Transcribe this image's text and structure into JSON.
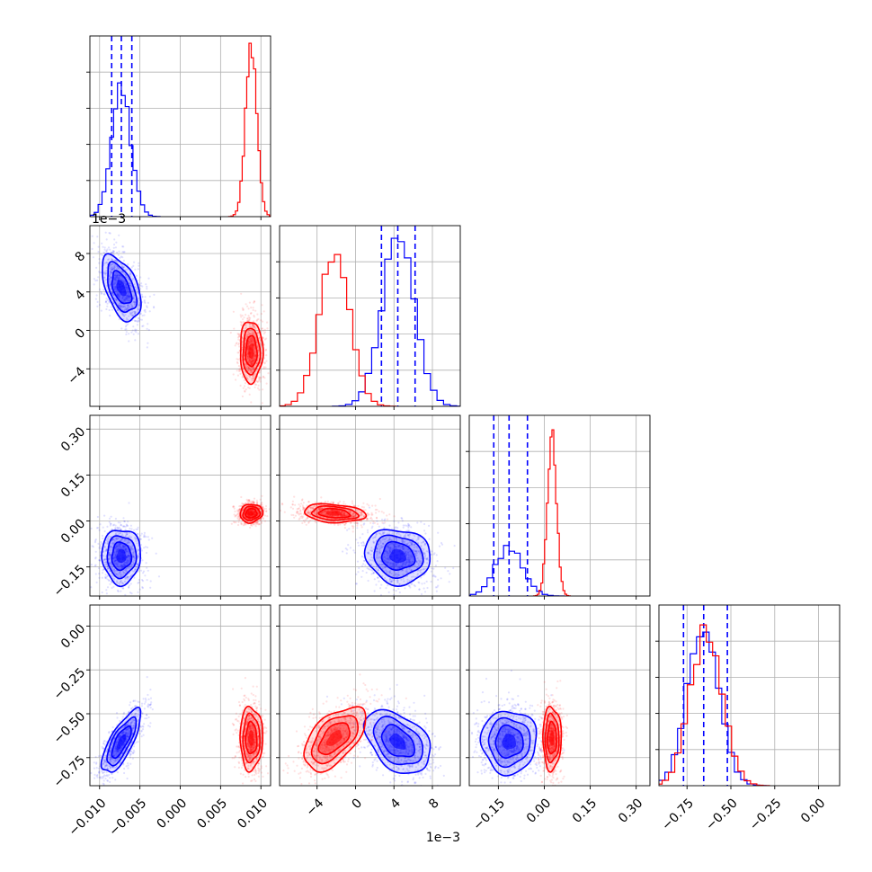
{
  "chart_data": {
    "type": "corner",
    "grid": true,
    "colors": {
      "blue": "#0000ff",
      "red": "#ff0000"
    },
    "parameters": [
      {
        "range": [
          -0.0112,
          0.0112
        ],
        "ticks": [
          -0.01,
          -0.005,
          0.0,
          0.005,
          0.01
        ],
        "tick_labels": [
          "−0.010",
          "−0.005",
          "0.000",
          "0.005",
          "0.010"
        ],
        "offset": ""
      },
      {
        "range": [
          -0.0079,
          0.0109
        ],
        "ticks": [
          -0.004,
          0.0,
          0.004,
          0.008
        ],
        "tick_labels": [
          "−4",
          "0",
          "4",
          "8"
        ],
        "offset": "1e−3"
      },
      {
        "range": [
          -0.245,
          0.345
        ],
        "ticks": [
          -0.15,
          0.0,
          0.15,
          0.3
        ],
        "tick_labels": [
          "−0.15",
          "0.00",
          "0.15",
          "0.30"
        ],
        "offset": ""
      },
      {
        "range": [
          -0.91,
          0.12
        ],
        "ticks": [
          -0.75,
          -0.5,
          -0.25,
          0.0
        ],
        "tick_labels": [
          "−0.75",
          "−0.50",
          "−0.25",
          "0.00"
        ],
        "offset": ""
      }
    ],
    "datasets": [
      {
        "color": "#0000ff",
        "means": [
          -0.0073,
          0.0044,
          -0.115,
          -0.66
        ],
        "sds": [
          0.0012,
          0.0017,
          0.045,
          0.09
        ],
        "correlations": {
          "0-1": -0.5,
          "0-2": 0.0,
          "0-3": 0.75,
          "1-2": -0.1,
          "1-3": -0.4,
          "2-3": 0.0
        },
        "quantiles": [
          [
            -0.0085,
            -0.0073,
            -0.006
          ],
          [
            0.0027,
            0.0044,
            0.0062
          ],
          [
            -0.165,
            -0.115,
            -0.055
          ],
          [
            -0.77,
            -0.655,
            -0.52
          ]
        ],
        "hist_peak": [
          0.74,
          0.93,
          0.28,
          0.85
        ]
      },
      {
        "color": "#ff0000",
        "means": [
          0.0088,
          -0.0022,
          0.025,
          -0.64
        ],
        "sds": [
          0.0007,
          0.0016,
          0.015,
          0.09
        ],
        "correlations": {
          "0-1": 0.0,
          "0-2": 0.1,
          "0-3": 0.0,
          "1-2": -0.2,
          "1-3": 0.55,
          "2-3": 0.0
        },
        "quantiles": [
          [],
          [],
          [],
          []
        ],
        "hist_peak": [
          0.96,
          0.84,
          0.92,
          0.89
        ]
      }
    ]
  }
}
